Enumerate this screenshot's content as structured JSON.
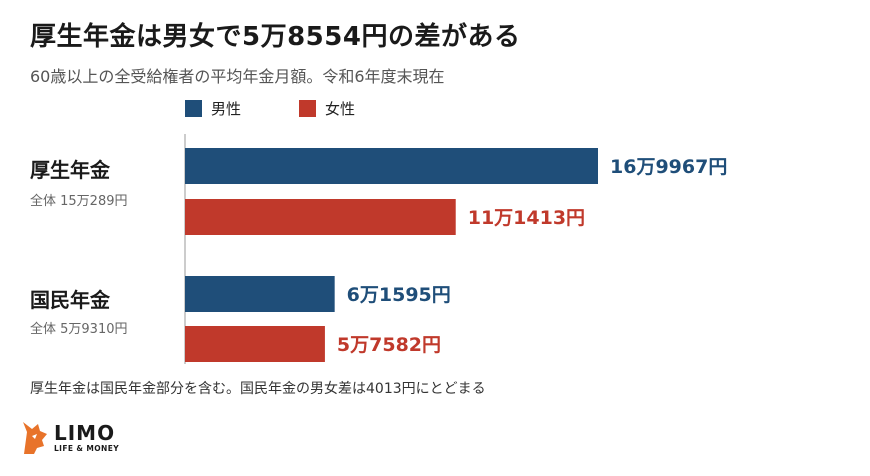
{
  "title": "厚生年金は男女で5万8554円の差がある",
  "subtitle": "60歳以上の全受給権者の平均年金月額。令和6年度末現在",
  "legend": {
    "male": "男性",
    "female": "女性"
  },
  "groups": [
    {
      "label": "厚生年金",
      "sub": "全体 15万289円"
    },
    {
      "label": "国民年金",
      "sub": "全体 5万9310円"
    }
  ],
  "footnote": "厚生年金は国民年金部分を含む。国民年金の男女差は4013円にとどまる",
  "logo": {
    "name": "LIMO",
    "tagline": "LIFE & MONEY"
  },
  "colors": {
    "male": "#1f4e79",
    "female": "#c0392b",
    "axis": "#bbbbbb",
    "logo_orange": "#e8732a"
  },
  "chart_data": {
    "type": "bar",
    "orientation": "horizontal",
    "categories": [
      "厚生年金",
      "国民年金"
    ],
    "series": [
      {
        "name": "男性",
        "values": [
          169967,
          61595
        ],
        "labels": [
          "16万9967円",
          "6万1595円"
        ]
      },
      {
        "name": "女性",
        "values": [
          111413,
          57582
        ],
        "labels": [
          "11万1413円",
          "5万7582円"
        ]
      }
    ],
    "title": "厚生年金は男女で5万8554円の差がある",
    "xlim": [
      0,
      200000
    ],
    "grid": false,
    "legend": "top-left"
  }
}
